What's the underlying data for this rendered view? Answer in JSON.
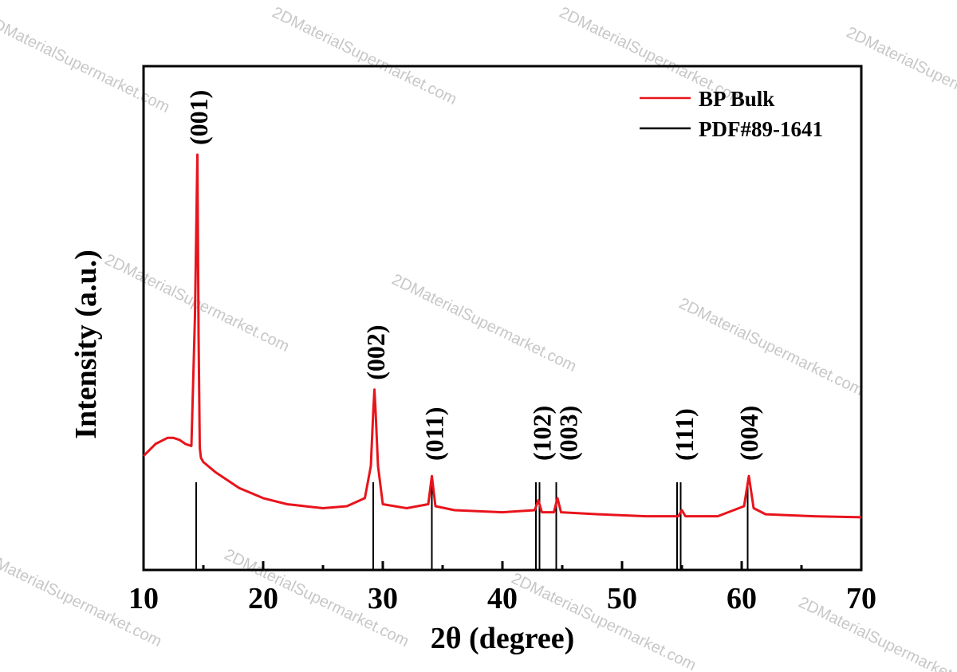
{
  "chart_data": {
    "type": "line",
    "title": "",
    "xlabel": "2θ (degree)",
    "ylabel": "Intensity (a.u.)",
    "xlim": [
      10,
      70
    ],
    "xticks": [
      10,
      20,
      30,
      40,
      50,
      60,
      70
    ],
    "grid": false,
    "legend_position": "top-right",
    "series": [
      {
        "name": "BP Bulk",
        "color": "#e8141c",
        "x": [
          10.0,
          11.0,
          12.0,
          12.5,
          13.0,
          13.5,
          14.0,
          14.3,
          14.5,
          14.6,
          14.7,
          14.8,
          15.0,
          16.0,
          18.0,
          20.0,
          22.0,
          25.0,
          27.0,
          28.5,
          29.0,
          29.2,
          29.3,
          29.4,
          29.6,
          30.0,
          32.0,
          33.8,
          34.1,
          34.4,
          36.0,
          40.0,
          42.7,
          43.0,
          43.3,
          44.3,
          44.6,
          44.9,
          48.0,
          52.0,
          54.7,
          55.0,
          55.3,
          58.0,
          60.2,
          60.6,
          61.0,
          62.0,
          66.0,
          70.0
        ],
        "y": [
          0.0,
          0.6,
          0.9,
          0.9,
          0.8,
          0.6,
          0.5,
          7.0,
          15.0,
          6.0,
          0.4,
          -0.1,
          -0.3,
          -0.8,
          -1.6,
          -2.1,
          -2.4,
          -2.6,
          -2.5,
          -2.1,
          -0.5,
          2.2,
          3.3,
          2.2,
          -0.5,
          -2.4,
          -2.6,
          -2.4,
          -1.0,
          -2.5,
          -2.7,
          -2.8,
          -2.7,
          -2.2,
          -2.8,
          -2.8,
          -2.1,
          -2.8,
          -2.9,
          -3.0,
          -3.0,
          -2.7,
          -3.0,
          -3.0,
          -2.5,
          -1.0,
          -2.6,
          -2.9,
          -3.0,
          -3.05
        ]
      },
      {
        "name": "PDF#89-1641",
        "color": "#000000",
        "type": "stick",
        "x": [
          14.4,
          29.2,
          34.1,
          42.8,
          43.1,
          44.5,
          54.6,
          54.9,
          60.5
        ],
        "y": [
          1,
          1,
          1,
          1,
          1,
          1,
          1,
          1,
          1
        ]
      }
    ],
    "annotations": [
      {
        "text": "(001)",
        "x": 14.6
      },
      {
        "text": "(002)",
        "x": 29.4
      },
      {
        "text": "(011)",
        "x": 34.3
      },
      {
        "text": "(102)",
        "x": 43.3
      },
      {
        "text": "(003)",
        "x": 45.5
      },
      {
        "text": "(111)",
        "x": 55.2
      },
      {
        "text": "(004)",
        "x": 60.6
      }
    ]
  },
  "watermark": "2DMaterialSupermarket.com"
}
